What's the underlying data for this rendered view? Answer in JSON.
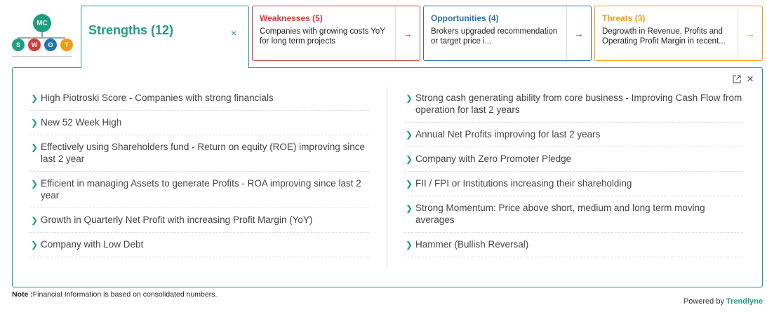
{
  "logo": {
    "mc": "MC",
    "letters": [
      "S",
      "W",
      "O",
      "T"
    ]
  },
  "tabs": {
    "strengths": {
      "title": "Strengths (12)",
      "close": "×"
    },
    "weaknesses": {
      "title": "Weaknesses (5)",
      "desc": "Companies with growing costs YoY for long term projects",
      "arrow": "→"
    },
    "opportunities": {
      "title": "Opportunities (4)",
      "desc": "Brokers upgraded recommendation or target price i...",
      "arrow": "→"
    },
    "threats": {
      "title": "Threats (3)",
      "desc": "Degrowth in Revenue, Profits and Operating Profit Margin in recent...",
      "arrow": "→"
    }
  },
  "panel": {
    "close": "×",
    "left": [
      "High Piotroski Score - Companies with strong financials",
      "New 52 Week High",
      "Effectively using Shareholders fund - Return on equity (ROE) improving since last 2 year",
      "Efficient in managing Assets to generate Profits - ROA improving since last 2 year",
      "Growth in Quarterly Net Profit with increasing Profit Margin (YoY)",
      "Company with Low Debt"
    ],
    "right": [
      "Strong cash generating ability from core business - Improving Cash Flow from operation for last 2 years",
      "Annual Net Profits improving for last 2 years",
      "Company with Zero Promoter Pledge",
      "FII / FPI or Institutions increasing their shareholding",
      "Strong Momentum: Price above short, medium and long term moving averages",
      "Hammer (Bullish Reversal)"
    ]
  },
  "footer": {
    "note_label": "Note :",
    "note_text": "Financial Information is based on consolidated numbers.",
    "powered_by": "Powered by",
    "brand": "Trendlyne"
  },
  "colors": {
    "strengths": "#1d9e84",
    "weaknesses": "#d43b3b",
    "opportunities": "#2573b5",
    "threats": "#f39c12"
  }
}
